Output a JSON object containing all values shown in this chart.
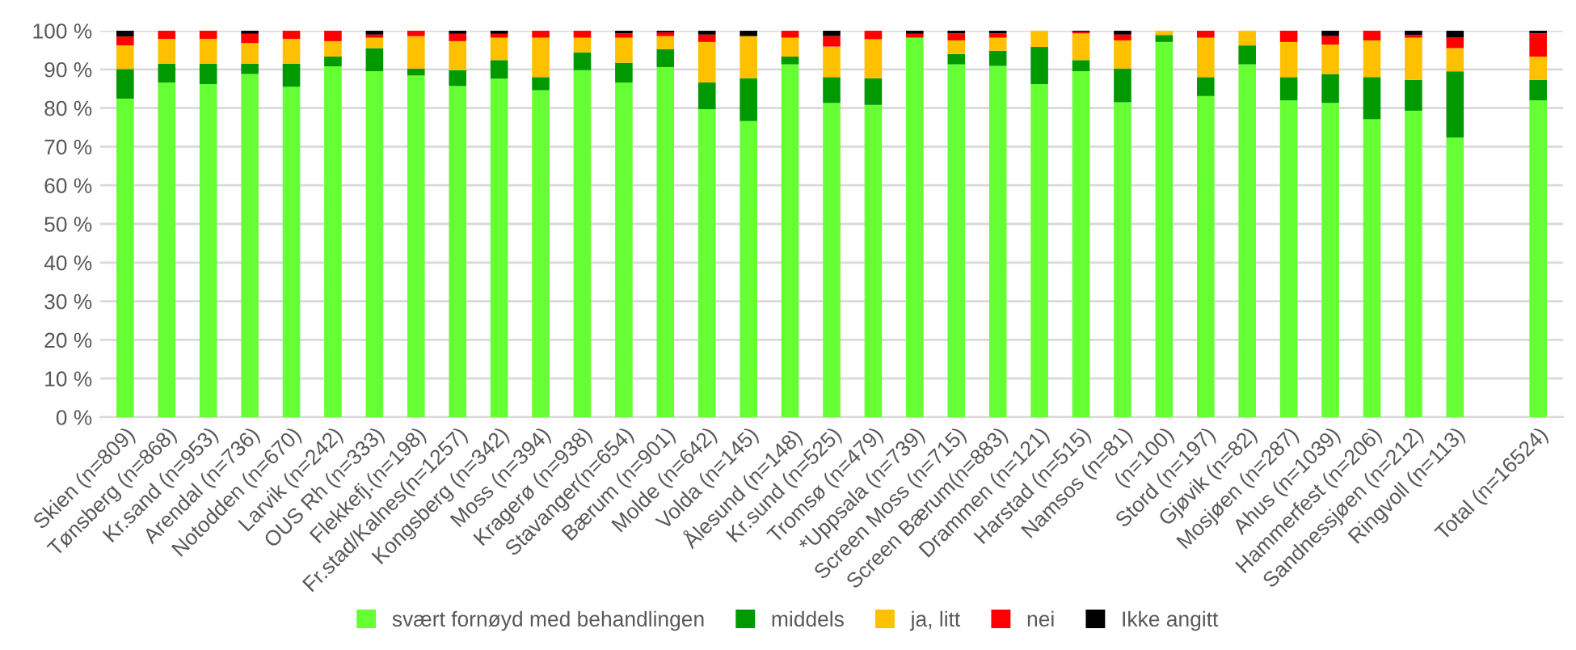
{
  "chart_data": {
    "type": "bar",
    "stacked": true,
    "categories": [
      "Skien (n=809)",
      "Tønsberg (n=868)",
      "Kr.sand (n=953)",
      "Arendal (n=736)",
      "Notodden (n=670)",
      "Larvik (n=242)",
      "OUS Rh (n=333)",
      "Flekkefj.(n=198)",
      "Fr.stad/Kalnes(n=1257)",
      "Kongsberg (n=342)",
      "Moss (n=394)",
      "Kragerø (n=938)",
      "Stavanger(n=654)",
      "Bærum (n=901)",
      "Molde (n=642)",
      "Volda (n=145)",
      "Ålesund (n=148)",
      "Kr.sund (n=525)",
      "Tromsø (n=479)",
      "*Uppsala (n=739)",
      "Screen Moss (n=715)",
      "Screen Bærum(n=883)",
      "Drammen (n=121)",
      "Harstad (n=515)",
      "Namsos (n=81)",
      "(n=100)",
      "Stord (n=197)",
      "Gjøvik (n=82)",
      "Mosjøen (n=287)",
      "Ahus (n=1039)",
      "Hammerfest (n=206)",
      "Sandnessjøen (n=212)",
      "Ringvoll (n=113)",
      null,
      "Total (n=16524)"
    ],
    "series": [
      {
        "name": "svært fornøyd med behandlingen",
        "color": "#66ff33",
        "values": [
          82.4,
          86.6,
          86.2,
          88.8,
          85.5,
          90.8,
          89.5,
          88.4,
          85.7,
          87.6,
          84.6,
          89.8,
          86.6,
          90.6,
          79.7,
          76.6,
          91.3,
          81.3,
          80.8,
          98.2,
          91.3,
          90.9,
          86.2,
          89.5,
          81.5,
          97.1,
          83.1,
          91.3,
          82.0,
          81.3,
          77.1,
          79.3,
          72.4,
          null,
          82.0
        ]
      },
      {
        "name": "middels",
        "color": "#009900",
        "values": [
          7.7,
          4.9,
          5.3,
          2.7,
          6.0,
          2.5,
          6.0,
          1.8,
          4.1,
          4.8,
          3.4,
          4.6,
          5.1,
          4.6,
          6.9,
          11.1,
          2.0,
          6.7,
          6.9,
          0,
          2.7,
          3.9,
          9.6,
          2.9,
          8.7,
          1.8,
          4.9,
          4.9,
          6.0,
          7.5,
          10.9,
          8.0,
          17.1,
          null,
          5.3
        ]
      },
      {
        "name": "ja, litt",
        "color": "#ffc000",
        "values": [
          6.1,
          6.4,
          6.4,
          5.3,
          6.4,
          4.0,
          2.7,
          8.4,
          7.5,
          5.8,
          10.2,
          3.8,
          6.5,
          3.4,
          10.5,
          10.9,
          4.9,
          7.9,
          10.1,
          0,
          3.5,
          3.4,
          4.2,
          6.9,
          7.3,
          1.1,
          10.2,
          3.8,
          9.1,
          7.6,
          9.5,
          10.9,
          6.0,
          null,
          6.0
        ]
      },
      {
        "name": "nei",
        "color": "#ff0000",
        "values": [
          2.3,
          2.1,
          2.1,
          2.4,
          2.1,
          2.7,
          0.8,
          1.4,
          1.9,
          1.0,
          1.8,
          1.8,
          1.1,
          1.0,
          1.9,
          0,
          1.8,
          2.7,
          2.2,
          1.0,
          1.8,
          1.1,
          0,
          0.4,
          1.5,
          0,
          1.8,
          0,
          2.9,
          2.2,
          2.5,
          0.7,
          2.7,
          null,
          6.0
        ]
      },
      {
        "name": "Ikke angitt",
        "color": "#000000",
        "values": [
          1.5,
          0,
          0,
          0.8,
          0,
          0,
          1.0,
          0,
          0.8,
          0.8,
          0,
          0,
          0.7,
          0.4,
          1.0,
          1.4,
          0,
          1.4,
          0,
          0.8,
          0.7,
          0.7,
          0,
          0.3,
          1.0,
          0,
          0,
          0,
          0,
          1.4,
          0,
          1.1,
          1.8,
          null,
          0.7
        ]
      }
    ],
    "ylim": [
      0,
      100
    ],
    "yticks": [
      {
        "value": 0,
        "label": "0 %"
      },
      {
        "value": 10,
        "label": "10 %"
      },
      {
        "value": 20,
        "label": "20 %"
      },
      {
        "value": 30,
        "label": "30 %"
      },
      {
        "value": 40,
        "label": "40 %"
      },
      {
        "value": 50,
        "label": "50 %"
      },
      {
        "value": 60,
        "label": "60 %"
      },
      {
        "value": 70,
        "label": "70 %"
      },
      {
        "value": 80,
        "label": "80 %"
      },
      {
        "value": 90,
        "label": "90 %"
      },
      {
        "value": 100,
        "label": "100 %"
      }
    ],
    "grid": "y",
    "legend": "bottom"
  }
}
